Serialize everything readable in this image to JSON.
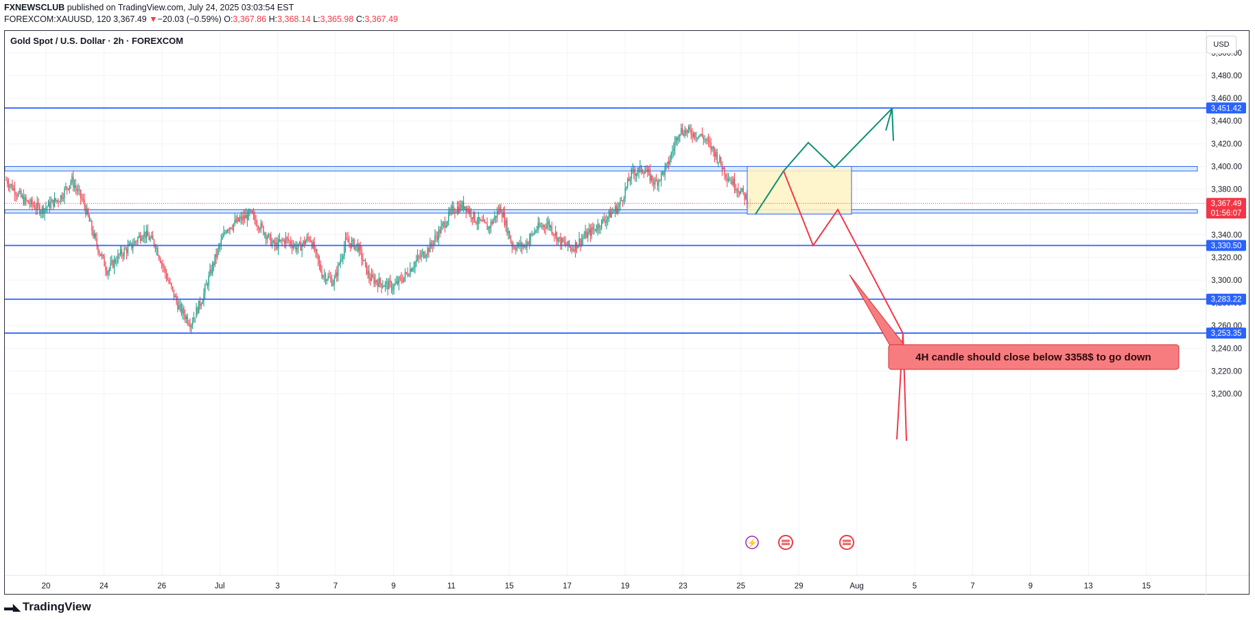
{
  "header": {
    "publisher": "FXNEWSCLUB",
    "published_text": "published on TradingView.com, July 24, 2025 03:03:54 EST",
    "symbol": "FOREXCOM:XAUUSD, 120",
    "last": "3,367.49",
    "change_arrow": "▼",
    "change": "−20.03 (−0.59%)",
    "o_label": "O:",
    "o_value": "3,367.86",
    "h_label": "H:",
    "h_value": "3,368.14",
    "l_label": "L:",
    "l_value": "3,365.98",
    "c_label": "C:",
    "c_value": "3,367.49"
  },
  "chart_title": "Gold Spot / U.S. Dollar · 2h · FOREXCOM",
  "currency_button": "USD",
  "brand": "TradingView",
  "colors": {
    "level_line": "#2962ff",
    "bull_candle": "#089981",
    "bear_candle": "#f23645",
    "bull_path": "#0a8f72",
    "bear_path": "#f23645",
    "zone_fill": "#fff3c4",
    "callout_fill": "#f77c80"
  },
  "chart_data": {
    "type": "candlestick",
    "title": "Gold Spot / U.S. Dollar · 2h · FOREXCOM",
    "y_axis": {
      "min": 3190,
      "max": 3500,
      "ticks": [
        "3,500.00",
        "3,480.00",
        "3,460.00",
        "3,440.00",
        "3,420.00",
        "3,400.00",
        "3,380.00",
        "3,360.00",
        "3,340.00",
        "3,320.00",
        "3,300.00",
        "3,280.00",
        "3,260.00",
        "3,240.00",
        "3,220.00",
        "3,200.00"
      ]
    },
    "x_axis": {
      "ticks": [
        "20",
        "24",
        "26",
        "Jul",
        "3",
        "7",
        "9",
        "11",
        "15",
        "17",
        "19",
        "23",
        "25",
        "29",
        "Aug",
        "5",
        "7",
        "9",
        "13",
        "15"
      ]
    },
    "price_path": [
      [
        0,
        3388
      ],
      [
        1.5,
        3370
      ],
      [
        3,
        3362
      ],
      [
        4.5,
        3372
      ],
      [
        5.5,
        3388
      ],
      [
        6.5,
        3368
      ],
      [
        7.5,
        3334
      ],
      [
        8.5,
        3308
      ],
      [
        9.5,
        3322
      ],
      [
        10.5,
        3330
      ],
      [
        11.5,
        3342
      ],
      [
        12.5,
        3332
      ],
      [
        13.5,
        3302
      ],
      [
        14.5,
        3276
      ],
      [
        15.5,
        3262
      ],
      [
        16.5,
        3285
      ],
      [
        17.5,
        3318
      ],
      [
        18.5,
        3346
      ],
      [
        19.5,
        3352
      ],
      [
        20.5,
        3358
      ],
      [
        21.5,
        3345
      ],
      [
        22.5,
        3330
      ],
      [
        23.5,
        3336
      ],
      [
        24.5,
        3328
      ],
      [
        25.5,
        3338
      ],
      [
        26.5,
        3306
      ],
      [
        27.5,
        3298
      ],
      [
        28.5,
        3334
      ],
      [
        29.5,
        3330
      ],
      [
        30.5,
        3302
      ],
      [
        31.5,
        3297
      ],
      [
        32.5,
        3294
      ],
      [
        33.5,
        3304
      ],
      [
        34.5,
        3318
      ],
      [
        35.5,
        3328
      ],
      [
        36.5,
        3345
      ],
      [
        37.5,
        3362
      ],
      [
        38.5,
        3366
      ],
      [
        39.5,
        3352
      ],
      [
        40.5,
        3346
      ],
      [
        41.5,
        3364
      ],
      [
        42.5,
        3330
      ],
      [
        43.5,
        3330
      ],
      [
        44.5,
        3345
      ],
      [
        45.5,
        3350
      ],
      [
        46.5,
        3334
      ],
      [
        47.5,
        3328
      ],
      [
        48.5,
        3338
      ],
      [
        49.5,
        3346
      ],
      [
        50.5,
        3356
      ],
      [
        51.5,
        3366
      ],
      [
        52.5,
        3394
      ],
      [
        53.5,
        3398
      ],
      [
        54.5,
        3385
      ],
      [
        55.5,
        3400
      ],
      [
        56.5,
        3432
      ],
      [
        57.5,
        3430
      ],
      [
        58.5,
        3426
      ],
      [
        59.5,
        3412
      ],
      [
        60.5,
        3392
      ],
      [
        61.5,
        3380
      ],
      [
        62.5,
        3367.49
      ]
    ],
    "horizontal_levels": [
      {
        "price": 3451.42,
        "label": "3,451.42"
      },
      {
        "price": 3330.5,
        "label": "3,330.50"
      },
      {
        "price": 3283.22,
        "label": "3,283.22"
      },
      {
        "price": 3253.35,
        "label": "3,253.35"
      }
    ],
    "zones": [
      {
        "from": 3396,
        "to": 3400
      },
      {
        "from": 3359,
        "to": 3362
      }
    ],
    "current_price": {
      "label": "3,367.49",
      "countdown": "01:56:07"
    },
    "annotations": [
      {
        "type": "callout",
        "text": "4H candle should close below 3358$ to go down"
      },
      {
        "type": "projection",
        "direction": "up",
        "target": "3,451.42"
      },
      {
        "type": "projection",
        "direction": "down",
        "target": "3,253.35"
      }
    ]
  }
}
